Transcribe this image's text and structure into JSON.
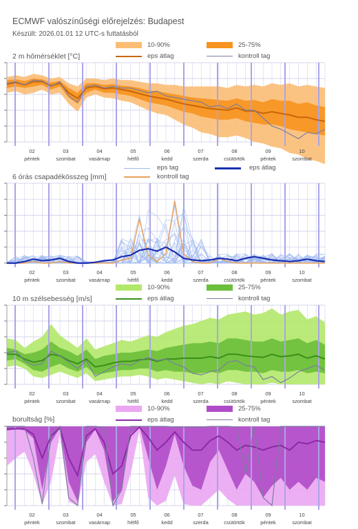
{
  "title": "ECMWF valószínűségi előrejelzés: Budapest",
  "subtitle": "Készült: 2026.01.01 12 UTC-s futtatásból",
  "day_labels": [
    {
      "day": "02",
      "name": "péntek"
    },
    {
      "day": "03",
      "name": "szombat"
    },
    {
      "day": "04",
      "name": "vasárnap"
    },
    {
      "day": "05",
      "name": "hétfő"
    },
    {
      "day": "06",
      "name": "kedd"
    },
    {
      "day": "07",
      "name": "szerda"
    },
    {
      "day": "08",
      "name": "csütörtök"
    },
    {
      "day": "09",
      "name": "péntek"
    },
    {
      "day": "10",
      "name": "szombat"
    }
  ],
  "colors": {
    "temp_outer": "#fbbd74",
    "temp_inner": "#f7931e",
    "temp_mean": "#c8650a",
    "precip_member": "#9fb8ee",
    "precip_mean": "#1a2fb0",
    "precip_control": "#e8a15a",
    "wind_outer": "#b2e86a",
    "wind_inner": "#6cbf3a",
    "wind_mean": "#3a8f1a",
    "cloud_outer": "#eba6f2",
    "cloud_inner": "#b04cc8",
    "cloud_mean": "#8a2aa6",
    "control": "#7a7d9e",
    "grid": "#c7c9e8",
    "day_line": "#aaa4e6"
  },
  "panels": {
    "temp": {
      "title": "2 m hőmérséklet [°C]",
      "legend": {
        "outer": "10-90%",
        "inner": "25-75%",
        "mean": "eps átlag",
        "control": "kontroll tag"
      }
    },
    "precip": {
      "title": "6 órás csapadékösszeg [mm]",
      "legend": {
        "member": "eps tag",
        "mean": "eps átlag",
        "control": "kontroll tag"
      }
    },
    "wind": {
      "title": "10 m szélsebesség [m/s]",
      "legend": {
        "outer": "10-90%",
        "inner": "25-75%",
        "mean": "eps átlag",
        "control": "kontroll tag"
      }
    },
    "cloud": {
      "title": "borultság [%]",
      "legend": {
        "outer": "10-90%",
        "inner": "25-75%",
        "mean": "eps átlag",
        "control": "kontroll tag"
      }
    }
  },
  "chart_data": [
    {
      "type": "area",
      "id": "temp",
      "title": "2 m hőmérséklet [°C]",
      "x_step_hours": 6,
      "series": [
        {
          "name": "10-90%",
          "low": [
            0.62,
            0.64,
            0.6,
            0.62,
            0.66,
            0.6,
            0.62,
            0.48,
            0.38,
            0.56,
            0.6,
            0.56,
            0.55,
            0.52,
            0.5,
            0.45,
            0.4,
            0.36,
            0.34,
            0.28,
            0.22,
            0.18,
            0.12,
            0.1,
            0.06,
            0.06,
            0.08,
            0.05,
            0.0,
            -0.02,
            -0.06,
            -0.08,
            -0.14,
            -0.16,
            -0.22,
            -0.24,
            -0.28
          ],
          "high": [
            0.82,
            0.84,
            0.82,
            0.86,
            0.84,
            0.8,
            0.82,
            0.74,
            0.7,
            0.8,
            0.8,
            0.78,
            0.8,
            0.78,
            0.78,
            0.76,
            0.74,
            0.74,
            0.72,
            0.72,
            0.7,
            0.7,
            0.7,
            0.7,
            0.7,
            0.68,
            0.72,
            0.7,
            0.72,
            0.7,
            0.74,
            0.72,
            0.74,
            0.7,
            0.72,
            0.7,
            0.68
          ]
        },
        {
          "name": "25-75%",
          "low": [
            0.68,
            0.7,
            0.68,
            0.7,
            0.72,
            0.66,
            0.7,
            0.56,
            0.48,
            0.62,
            0.66,
            0.62,
            0.62,
            0.6,
            0.58,
            0.54,
            0.5,
            0.48,
            0.46,
            0.42,
            0.38,
            0.36,
            0.32,
            0.3,
            0.28,
            0.28,
            0.3,
            0.26,
            0.24,
            0.22,
            0.22,
            0.2,
            0.16,
            0.14,
            0.12,
            0.1,
            0.08
          ],
          "high": [
            0.78,
            0.79,
            0.77,
            0.8,
            0.79,
            0.75,
            0.77,
            0.68,
            0.62,
            0.74,
            0.74,
            0.72,
            0.73,
            0.71,
            0.7,
            0.68,
            0.65,
            0.64,
            0.62,
            0.6,
            0.58,
            0.56,
            0.55,
            0.54,
            0.53,
            0.52,
            0.55,
            0.52,
            0.53,
            0.5,
            0.54,
            0.52,
            0.52,
            0.48,
            0.5,
            0.46,
            0.44
          ]
        },
        {
          "name": "eps átlag",
          "values": [
            0.73,
            0.75,
            0.72,
            0.76,
            0.76,
            0.71,
            0.74,
            0.62,
            0.55,
            0.68,
            0.7,
            0.67,
            0.68,
            0.66,
            0.64,
            0.61,
            0.58,
            0.56,
            0.54,
            0.51,
            0.48,
            0.46,
            0.44,
            0.42,
            0.41,
            0.4,
            0.43,
            0.39,
            0.39,
            0.36,
            0.38,
            0.36,
            0.34,
            0.31,
            0.31,
            0.28,
            0.26
          ]
        },
        {
          "name": "kontroll tag",
          "values": [
            0.74,
            0.76,
            0.72,
            0.78,
            0.77,
            0.7,
            0.76,
            0.58,
            0.5,
            0.7,
            0.72,
            0.68,
            0.7,
            0.68,
            0.68,
            0.65,
            0.62,
            0.64,
            0.58,
            0.56,
            0.54,
            0.52,
            0.5,
            0.44,
            0.46,
            0.42,
            0.48,
            0.4,
            0.4,
            0.3,
            0.2,
            0.16,
            0.1,
            0.04,
            0.12,
            0.1,
            0.16
          ]
        }
      ]
    },
    {
      "type": "line",
      "id": "precip",
      "title": "6 órás csapadékösszeg [mm]",
      "x_step_hours": 6,
      "series": [
        {
          "name": "eps átlag",
          "values": [
            0.0,
            0.0,
            0.02,
            0.05,
            0.03,
            0.04,
            0.06,
            0.02,
            0.0,
            0.0,
            0.01,
            0.03,
            0.04,
            0.08,
            0.1,
            0.16,
            0.18,
            0.15,
            0.2,
            0.14,
            0.06,
            0.04,
            0.03,
            0.04,
            0.06,
            0.05,
            0.03,
            0.06,
            0.08,
            0.06,
            0.04,
            0.03,
            0.02,
            0.03,
            0.05,
            0.03,
            0.02
          ]
        },
        {
          "name": "kontroll tag",
          "values": [
            0.0,
            0.0,
            0.0,
            0.02,
            0.0,
            0.0,
            0.02,
            0.0,
            0.0,
            0.0,
            0.0,
            0.0,
            0.0,
            0.04,
            0.06,
            0.55,
            0.1,
            0.02,
            0.12,
            0.78,
            0.12,
            0.02,
            0.0,
            0.0,
            0.06,
            0.02,
            0.0,
            0.0,
            0.0,
            0.0,
            0.0,
            0.0,
            0.0,
            0.0,
            0.0,
            0.0,
            0.0
          ]
        }
      ]
    },
    {
      "type": "area",
      "id": "wind",
      "title": "10 m szélsebesség [m/s]",
      "x_step_hours": 6,
      "series": [
        {
          "name": "10-90%",
          "low": [
            0.22,
            0.24,
            0.2,
            0.1,
            0.08,
            0.12,
            0.16,
            0.12,
            0.08,
            0.14,
            0.04,
            0.06,
            0.08,
            0.1,
            0.1,
            0.12,
            0.1,
            0.06,
            0.08,
            0.06,
            0.04,
            0.02,
            0.0,
            0.02,
            0.0,
            0.04,
            0.02,
            0.0,
            0.0,
            0.0,
            0.02,
            0.0,
            0.0,
            0.0,
            0.0,
            0.0,
            0.0
          ],
          "high": [
            0.58,
            0.56,
            0.46,
            0.54,
            0.6,
            0.76,
            0.62,
            0.54,
            0.46,
            0.58,
            0.44,
            0.48,
            0.52,
            0.56,
            0.54,
            0.58,
            0.62,
            0.6,
            0.66,
            0.7,
            0.74,
            0.76,
            0.8,
            0.84,
            0.82,
            0.88,
            0.9,
            0.92,
            0.88,
            0.9,
            0.96,
            0.88,
            0.92,
            0.94,
            0.82,
            0.86,
            0.78
          ]
        },
        {
          "name": "25-75%",
          "low": [
            0.3,
            0.32,
            0.26,
            0.18,
            0.16,
            0.22,
            0.26,
            0.2,
            0.16,
            0.22,
            0.12,
            0.14,
            0.16,
            0.18,
            0.18,
            0.2,
            0.2,
            0.16,
            0.18,
            0.16,
            0.16,
            0.14,
            0.14,
            0.16,
            0.14,
            0.18,
            0.18,
            0.16,
            0.16,
            0.14,
            0.18,
            0.16,
            0.16,
            0.18,
            0.14,
            0.16,
            0.14
          ],
          "high": [
            0.46,
            0.44,
            0.38,
            0.4,
            0.44,
            0.54,
            0.46,
            0.42,
            0.36,
            0.44,
            0.32,
            0.36,
            0.38,
            0.4,
            0.4,
            0.42,
            0.44,
            0.42,
            0.46,
            0.48,
            0.5,
            0.52,
            0.52,
            0.54,
            0.52,
            0.58,
            0.58,
            0.56,
            0.54,
            0.54,
            0.58,
            0.54,
            0.56,
            0.58,
            0.52,
            0.56,
            0.5
          ]
        },
        {
          "name": "eps átlag",
          "values": [
            0.38,
            0.38,
            0.32,
            0.28,
            0.3,
            0.38,
            0.36,
            0.3,
            0.26,
            0.32,
            0.22,
            0.24,
            0.27,
            0.29,
            0.29,
            0.31,
            0.32,
            0.29,
            0.32,
            0.32,
            0.33,
            0.33,
            0.33,
            0.35,
            0.33,
            0.38,
            0.38,
            0.36,
            0.35,
            0.34,
            0.38,
            0.35,
            0.36,
            0.38,
            0.33,
            0.36,
            0.32
          ]
        },
        {
          "name": "kontroll tag",
          "values": [
            0.4,
            0.42,
            0.3,
            0.24,
            0.26,
            0.42,
            0.36,
            0.28,
            0.2,
            0.3,
            0.1,
            0.16,
            0.22,
            0.26,
            0.24,
            0.3,
            0.34,
            0.3,
            0.32,
            0.26,
            0.22,
            0.14,
            0.12,
            0.16,
            0.18,
            0.28,
            0.3,
            0.24,
            0.22,
            0.06,
            0.1,
            0.02,
            0.08,
            0.16,
            0.2,
            0.24,
            0.18
          ]
        }
      ]
    },
    {
      "type": "area",
      "id": "cloud",
      "title": "borultság [%]",
      "x_step_hours": 6,
      "series": [
        {
          "name": "10-90%",
          "low": [
            0.5,
            0.6,
            0.68,
            0.4,
            0.02,
            0.3,
            0.9,
            0.05,
            0.0,
            0.55,
            0.65,
            0.3,
            0.0,
            0.02,
            0.4,
            0.95,
            0.1,
            0.0,
            0.06,
            0.38,
            0.02,
            0.0,
            0.0,
            0.1,
            0.2,
            0.08,
            0.0,
            0.0,
            0.0,
            0.0,
            0.0,
            0.0,
            0.0,
            0.0,
            0.0,
            0.0,
            0.0
          ],
          "high": [
            0.98,
            0.99,
            0.99,
            0.99,
            0.99,
            0.99,
            1.0,
            0.99,
            1.0,
            1.0,
            1.0,
            0.99,
            0.99,
            1.0,
            1.0,
            1.0,
            1.0,
            0.99,
            1.0,
            1.0,
            1.0,
            1.0,
            1.0,
            1.0,
            1.0,
            1.0,
            1.0,
            1.0,
            1.0,
            1.0,
            1.0,
            1.0,
            1.0,
            1.0,
            1.0,
            1.0,
            1.0
          ]
        },
        {
          "name": "25-75%",
          "low": [
            0.95,
            0.97,
            0.95,
            0.85,
            0.2,
            0.8,
            0.98,
            0.3,
            0.05,
            0.8,
            0.96,
            0.7,
            0.05,
            0.2,
            0.9,
            1.0,
            0.6,
            0.2,
            0.5,
            0.9,
            0.5,
            0.25,
            0.2,
            0.55,
            0.7,
            0.45,
            0.2,
            0.4,
            0.3,
            0.1,
            0.25,
            0.35,
            0.2,
            0.3,
            0.2,
            0.35,
            0.3
          ],
          "high": [
            1.0,
            1.0,
            1.0,
            1.0,
            1.0,
            1.0,
            1.0,
            1.0,
            1.0,
            1.0,
            1.0,
            1.0,
            1.0,
            1.0,
            1.0,
            1.0,
            1.0,
            1.0,
            1.0,
            1.0,
            1.0,
            1.0,
            1.0,
            1.0,
            1.0,
            1.0,
            1.0,
            1.0,
            1.0,
            1.0,
            1.0,
            1.0,
            1.0,
            1.0,
            1.0,
            1.0,
            1.0
          ]
        },
        {
          "name": "eps átlag",
          "values": [
            0.96,
            0.97,
            0.97,
            0.9,
            0.6,
            0.88,
            0.98,
            0.6,
            0.38,
            0.88,
            0.97,
            0.8,
            0.4,
            0.5,
            0.88,
            0.99,
            0.86,
            0.7,
            0.8,
            0.93,
            0.8,
            0.7,
            0.7,
            0.82,
            0.88,
            0.8,
            0.7,
            0.76,
            0.74,
            0.7,
            0.74,
            0.76,
            0.7,
            0.8,
            0.78,
            0.82,
            0.8
          ]
        },
        {
          "name": "kontroll tag",
          "values": [
            1.0,
            1.0,
            1.0,
            0.6,
            0.02,
            0.9,
            1.0,
            0.1,
            0.0,
            1.0,
            1.0,
            0.99,
            0.0,
            0.2,
            1.0,
            1.0,
            1.0,
            1.0,
            1.0,
            0.99,
            0.99,
            0.99,
            0.99,
            1.0,
            1.0,
            1.0,
            0.99,
            0.4,
            1.0,
            0.1,
            0.0,
            1.0,
            1.0,
            1.0,
            1.0,
            1.0,
            1.0
          ]
        }
      ]
    }
  ]
}
